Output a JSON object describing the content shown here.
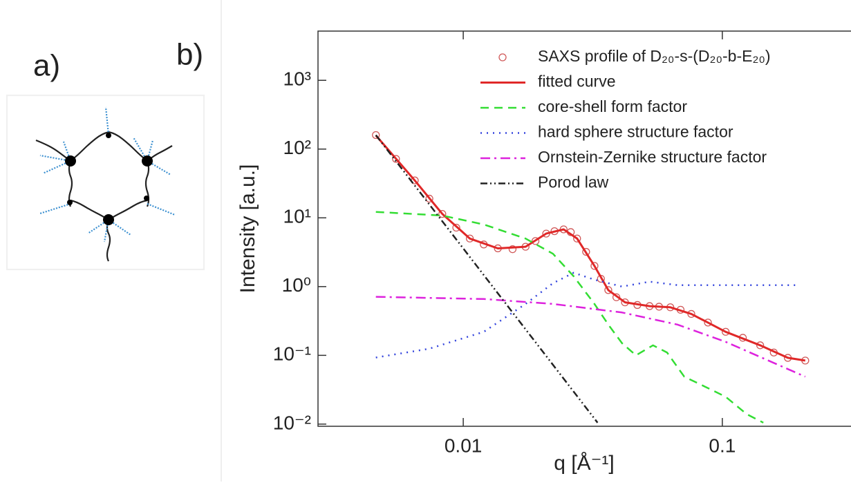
{
  "panel_labels": [
    "a)",
    "b)"
  ],
  "chart_data": {
    "type": "line",
    "x_label": "q [Å⁻¹]",
    "y_label": "Intensity [a.u.]",
    "xscale": "log",
    "yscale": "log",
    "xlim": [
      0.00275,
      0.31
    ],
    "ylim": [
      0.0093,
      5200
    ],
    "xticks": [
      0.01,
      0.1
    ],
    "yticks": [
      {
        "value": 1000,
        "label": "10³"
      },
      {
        "value": 100,
        "label": "10²"
      },
      {
        "value": 10,
        "label": "10¹"
      },
      {
        "value": 1,
        "label": "10⁰"
      },
      {
        "value": 0.1,
        "label": "10⁻¹"
      },
      {
        "value": 0.01,
        "label": "10⁻²"
      }
    ],
    "legend": "upper right",
    "series": [
      {
        "name": "SAXS profile of D₂₀-s-(D₂₀-b-E₂₀)",
        "color": "#d05858",
        "style": "markers",
        "x": [
          0.0046,
          0.0055,
          0.0065,
          0.0074,
          0.0083,
          0.0094,
          0.0106,
          0.012,
          0.0136,
          0.0155,
          0.0174,
          0.019,
          0.0209,
          0.0225,
          0.0244,
          0.026,
          0.0275,
          0.0298,
          0.0321,
          0.034,
          0.0363,
          0.039,
          0.0421,
          0.047,
          0.0524,
          0.057,
          0.063,
          0.069,
          0.0759,
          0.088,
          0.103,
          0.12,
          0.14,
          0.158,
          0.179,
          0.209
        ],
        "values": [
          160,
          72,
          35,
          19,
          11.4,
          7.2,
          5.0,
          4.1,
          3.6,
          3.5,
          3.8,
          4.6,
          5.9,
          6.4,
          6.8,
          6.2,
          5.0,
          3.2,
          2.0,
          1.3,
          0.89,
          0.7,
          0.59,
          0.54,
          0.52,
          0.51,
          0.5,
          0.46,
          0.4,
          0.3,
          0.22,
          0.18,
          0.14,
          0.11,
          0.092,
          0.084
        ]
      },
      {
        "name": "fitted curve",
        "color": "#e02828",
        "style": "solid",
        "x": [
          0.0046,
          0.0065,
          0.0083,
          0.0106,
          0.0136,
          0.0174,
          0.0209,
          0.0244,
          0.0275,
          0.0321,
          0.0363,
          0.0421,
          0.0524,
          0.063,
          0.0759,
          0.103,
          0.14,
          0.179,
          0.209
        ],
        "values": [
          158,
          35,
          11.4,
          5.0,
          3.6,
          3.8,
          5.9,
          6.8,
          5.0,
          2.0,
          0.89,
          0.59,
          0.52,
          0.5,
          0.4,
          0.22,
          0.14,
          0.092,
          0.084
        ]
      },
      {
        "name": "core-shell form factor",
        "color": "#33dd33",
        "style": "dashed",
        "x": [
          0.0046,
          0.0083,
          0.012,
          0.0174,
          0.0222,
          0.0267,
          0.0321,
          0.0363,
          0.041,
          0.0464,
          0.054,
          0.0612,
          0.0713,
          0.0858,
          0.103,
          0.124,
          0.144
        ],
        "values": [
          12.2,
          10.8,
          8.0,
          5.0,
          3.0,
          1.41,
          0.56,
          0.28,
          0.15,
          0.1,
          0.14,
          0.11,
          0.049,
          0.035,
          0.025,
          0.014,
          0.0105
        ]
      },
      {
        "name": "hard sphere structure factor",
        "color": "#3344dd",
        "style": "dotted",
        "x": [
          0.0046,
          0.0074,
          0.012,
          0.0174,
          0.0222,
          0.0267,
          0.0321,
          0.041,
          0.0524,
          0.0671,
          0.103,
          0.197
        ],
        "values": [
          0.093,
          0.125,
          0.22,
          0.56,
          1.12,
          1.59,
          1.26,
          1.0,
          1.18,
          1.05,
          1.05,
          1.05
        ]
      },
      {
        "name": "Ornstein-Zernike structure factor",
        "color": "#dd22dd",
        "style": "dashdot",
        "x": [
          0.0046,
          0.012,
          0.0222,
          0.041,
          0.0671,
          0.103,
          0.209
        ],
        "values": [
          0.71,
          0.66,
          0.56,
          0.42,
          0.28,
          0.157,
          0.049
        ]
      },
      {
        "name": "Porod law",
        "color": "#222222",
        "style": "dashdotdot",
        "x": [
          0.0046,
          0.033
        ],
        "values": [
          160,
          0.0105
        ]
      }
    ]
  }
}
